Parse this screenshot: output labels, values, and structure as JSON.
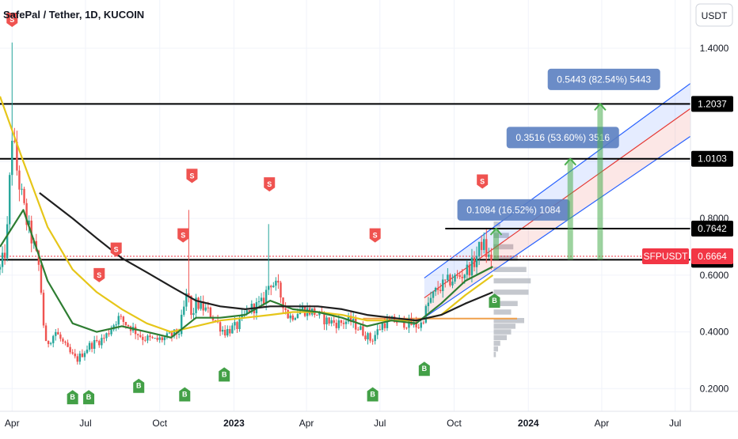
{
  "header": {
    "title": "SafePal / Tether, 1D, KUCOIN",
    "currency_button": "USDT"
  },
  "colors": {
    "candle_up": "#26a69a",
    "candle_down": "#ef5350",
    "ma_yellow": "#e6c619",
    "ma_green": "#2e7d32",
    "ma_black": "#1f1f1f",
    "level_line": "#000000",
    "channel_blue": "#2962ff",
    "channel_red": "#e53935",
    "measure_box": "#5b7fc1",
    "arrow_green": "#4caf50",
    "orange_line": "#f0a04b",
    "sell_signal": "#ef5350",
    "buy_signal": "#43a047",
    "price_tag": "#f23645",
    "volume_profile": "#b2b5be"
  },
  "chart_data": {
    "type": "candlestick",
    "title": "SafePal / Tether, 1D, KUCOIN",
    "symbol": "SFPUSDT",
    "current_price": "0.6664",
    "y_range": [
      0.12,
      1.57
    ],
    "y_ticks": [
      "0.2000",
      "0.4000",
      "0.6000",
      "0.8000",
      "1.0000",
      "1.2000",
      "1.4000"
    ],
    "x_range": [
      "2022-03-17",
      "2024-07-20"
    ],
    "x_ticks": [
      {
        "label": "Apr",
        "date": "2022-04-01",
        "bold": false
      },
      {
        "label": "Jul",
        "date": "2022-07-01",
        "bold": false
      },
      {
        "label": "Oct",
        "date": "2022-10-01",
        "bold": false
      },
      {
        "label": "2023",
        "date": "2023-01-01",
        "bold": true
      },
      {
        "label": "Apr",
        "date": "2023-04-01",
        "bold": false
      },
      {
        "label": "Jul",
        "date": "2023-07-01",
        "bold": false
      },
      {
        "label": "Oct",
        "date": "2023-10-01",
        "bold": false
      },
      {
        "label": "2024",
        "date": "2024-01-01",
        "bold": true
      },
      {
        "label": "Apr",
        "date": "2024-04-01",
        "bold": false
      },
      {
        "label": "Jul",
        "date": "2024-07-01",
        "bold": false
      }
    ],
    "price_path": [
      [
        "2022-03-17",
        0.62
      ],
      [
        "2022-03-25",
        0.7
      ],
      [
        "2022-04-01",
        1.1
      ],
      [
        "2022-04-08",
        0.95
      ],
      [
        "2022-04-18",
        0.8
      ],
      [
        "2022-04-28",
        0.7
      ],
      [
        "2022-05-05",
        0.62
      ],
      [
        "2022-05-12",
        0.35
      ],
      [
        "2022-05-25",
        0.4
      ],
      [
        "2022-06-10",
        0.33
      ],
      [
        "2022-06-20",
        0.3
      ],
      [
        "2022-07-05",
        0.35
      ],
      [
        "2022-07-25",
        0.38
      ],
      [
        "2022-08-10",
        0.45
      ],
      [
        "2022-08-25",
        0.42
      ],
      [
        "2022-09-10",
        0.38
      ],
      [
        "2022-09-25",
        0.37
      ],
      [
        "2022-10-10",
        0.38
      ],
      [
        "2022-10-25",
        0.4
      ],
      [
        "2022-11-05",
        0.55
      ],
      [
        "2022-11-09",
        0.45
      ],
      [
        "2022-11-15",
        0.5
      ],
      [
        "2022-12-01",
        0.47
      ],
      [
        "2022-12-20",
        0.4
      ],
      [
        "2023-01-05",
        0.42
      ],
      [
        "2023-01-20",
        0.48
      ],
      [
        "2023-02-05",
        0.5
      ],
      [
        "2023-02-15",
        0.58
      ],
      [
        "2023-02-25",
        0.55
      ],
      [
        "2023-03-10",
        0.45
      ],
      [
        "2023-03-25",
        0.48
      ],
      [
        "2023-04-10",
        0.47
      ],
      [
        "2023-04-25",
        0.44
      ],
      [
        "2023-05-10",
        0.43
      ],
      [
        "2023-05-25",
        0.44
      ],
      [
        "2023-06-10",
        0.4
      ],
      [
        "2023-06-20",
        0.37
      ],
      [
        "2023-07-05",
        0.43
      ],
      [
        "2023-07-20",
        0.44
      ],
      [
        "2023-08-05",
        0.43
      ],
      [
        "2023-08-20",
        0.42
      ],
      [
        "2023-08-30",
        0.5
      ],
      [
        "2023-09-10",
        0.55
      ],
      [
        "2023-09-25",
        0.58
      ],
      [
        "2023-10-10",
        0.6
      ],
      [
        "2023-10-25",
        0.64
      ],
      [
        "2023-11-05",
        0.72
      ],
      [
        "2023-11-12",
        0.66
      ],
      [
        "2023-11-18",
        0.66
      ]
    ],
    "spikes": [
      {
        "date": "2022-04-01",
        "high": 1.42
      },
      {
        "date": "2022-11-08",
        "high": 0.83
      },
      {
        "date": "2023-02-14",
        "high": 0.78
      }
    ],
    "moving_averages": [
      {
        "color_key": "ma_yellow",
        "points": [
          [
            "2022-03-17",
            1.23
          ],
          [
            "2022-04-15",
            1.0
          ],
          [
            "2022-05-15",
            0.77
          ],
          [
            "2022-06-15",
            0.62
          ],
          [
            "2022-07-15",
            0.54
          ],
          [
            "2022-08-15",
            0.48
          ],
          [
            "2022-09-15",
            0.43
          ],
          [
            "2022-10-15",
            0.4
          ],
          [
            "2022-11-15",
            0.42
          ],
          [
            "2022-12-15",
            0.44
          ],
          [
            "2023-01-15",
            0.45
          ],
          [
            "2023-02-15",
            0.46
          ],
          [
            "2023-03-15",
            0.47
          ],
          [
            "2023-04-15",
            0.47
          ],
          [
            "2023-05-15",
            0.46
          ],
          [
            "2023-06-15",
            0.44
          ],
          [
            "2023-07-15",
            0.44
          ],
          [
            "2023-08-15",
            0.44
          ],
          [
            "2023-09-15",
            0.46
          ],
          [
            "2023-10-15",
            0.53
          ],
          [
            "2023-11-18",
            0.6
          ]
        ]
      },
      {
        "color_key": "ma_green",
        "points": [
          [
            "2022-03-17",
            0.7
          ],
          [
            "2022-04-15",
            0.83
          ],
          [
            "2022-05-15",
            0.58
          ],
          [
            "2022-06-15",
            0.43
          ],
          [
            "2022-07-15",
            0.4
          ],
          [
            "2022-08-15",
            0.42
          ],
          [
            "2022-09-15",
            0.4
          ],
          [
            "2022-10-15",
            0.38
          ],
          [
            "2022-11-15",
            0.45
          ],
          [
            "2022-12-15",
            0.45
          ],
          [
            "2023-01-15",
            0.46
          ],
          [
            "2023-02-15",
            0.51
          ],
          [
            "2023-03-15",
            0.48
          ],
          [
            "2023-04-15",
            0.47
          ],
          [
            "2023-05-15",
            0.45
          ],
          [
            "2023-06-15",
            0.42
          ],
          [
            "2023-07-15",
            0.44
          ],
          [
            "2023-08-15",
            0.43
          ],
          [
            "2023-09-15",
            0.5
          ],
          [
            "2023-10-15",
            0.58
          ],
          [
            "2023-11-18",
            0.63
          ]
        ]
      },
      {
        "color_key": "ma_black",
        "points": [
          [
            "2022-05-05",
            0.89
          ],
          [
            "2022-06-15",
            0.8
          ],
          [
            "2022-07-15",
            0.73
          ],
          [
            "2022-08-15",
            0.66
          ],
          [
            "2022-09-15",
            0.61
          ],
          [
            "2022-10-15",
            0.56
          ],
          [
            "2022-11-15",
            0.51
          ],
          [
            "2022-12-15",
            0.49
          ],
          [
            "2023-01-15",
            0.48
          ],
          [
            "2023-02-15",
            0.49
          ],
          [
            "2023-03-15",
            0.49
          ],
          [
            "2023-04-15",
            0.49
          ],
          [
            "2023-05-15",
            0.48
          ],
          [
            "2023-06-15",
            0.46
          ],
          [
            "2023-07-15",
            0.45
          ],
          [
            "2023-08-15",
            0.44
          ],
          [
            "2023-09-15",
            0.46
          ],
          [
            "2023-10-15",
            0.5
          ],
          [
            "2023-11-18",
            0.54
          ]
        ]
      }
    ],
    "horizontal_levels": [
      {
        "value": 1.2037,
        "label": "1.2037",
        "from": "2022-03-17"
      },
      {
        "value": 1.0103,
        "label": "1.0103",
        "from": "2022-03-17"
      },
      {
        "value": 0.7642,
        "label": "0.7642",
        "from": "2023-09-20"
      },
      {
        "value": 0.6542,
        "label": "0.6542",
        "from": "2022-03-17"
      }
    ],
    "dotted_price_line": 0.6664,
    "orange_line": {
      "value": 0.447,
      "from": "2023-06-10",
      "to": "2023-12-18"
    },
    "channel": {
      "start": "2023-08-25",
      "end": "2024-08-15",
      "top": [
        0.59,
        1.33
      ],
      "mid": [
        0.52,
        1.24
      ],
      "bottom": [
        0.45,
        1.14
      ]
    },
    "measurements": [
      {
        "text": "0.1084 (16.52%) 1084",
        "date": "2023-11-22",
        "box_date": "2023-10-05",
        "box_value": 0.83
      },
      {
        "text": "0.3516 (53.60%) 3516",
        "date": "2024-02-22",
        "box_date": "2023-12-05",
        "box_value": 1.085
      },
      {
        "text": "0.5443 (82.54%) 5443",
        "date": "2024-03-30",
        "box_date": "2024-01-25",
        "box_value": 1.29
      }
    ],
    "signals": [
      {
        "type": "sell",
        "label": "S",
        "date": "2022-04-01",
        "value": 1.5
      },
      {
        "type": "sell",
        "label": "S",
        "date": "2022-07-18",
        "value": 0.6
      },
      {
        "type": "sell",
        "label": "S",
        "date": "2022-08-08",
        "value": 0.69
      },
      {
        "type": "sell",
        "label": "S",
        "date": "2022-10-30",
        "value": 0.74
      },
      {
        "type": "sell",
        "label": "S",
        "date": "2022-11-10",
        "value": 0.95
      },
      {
        "type": "sell",
        "label": "S",
        "date": "2023-02-14",
        "value": 0.92
      },
      {
        "type": "sell",
        "label": "S",
        "date": "2023-06-25",
        "value": 0.74
      },
      {
        "type": "sell",
        "label": "S",
        "date": "2023-11-05",
        "value": 0.93
      },
      {
        "type": "buy",
        "label": "B",
        "date": "2022-06-15",
        "value": 0.17
      },
      {
        "type": "buy",
        "label": "B",
        "date": "2022-07-05",
        "value": 0.17
      },
      {
        "type": "buy",
        "label": "B",
        "date": "2022-09-05",
        "value": 0.21
      },
      {
        "type": "buy",
        "label": "B",
        "date": "2022-11-01",
        "value": 0.18
      },
      {
        "type": "buy",
        "label": "B",
        "date": "2022-12-20",
        "value": 0.25
      },
      {
        "type": "buy",
        "label": "B",
        "date": "2023-06-22",
        "value": 0.18
      },
      {
        "type": "buy",
        "label": "B",
        "date": "2023-08-25",
        "value": 0.27
      },
      {
        "type": "buy",
        "label": "B",
        "date": "2023-11-20",
        "value": 0.51
      }
    ],
    "volume_profile": {
      "anchor": "2023-11-22",
      "rows": [
        [
          0.78,
          0.15
        ],
        [
          0.74,
          0.35
        ],
        [
          0.7,
          0.45
        ],
        [
          0.66,
          0.55
        ],
        [
          0.62,
          0.75
        ],
        [
          0.58,
          0.85
        ],
        [
          0.54,
          0.8
        ],
        [
          0.5,
          0.55
        ],
        [
          0.47,
          0.4
        ],
        [
          0.44,
          0.7
        ],
        [
          0.42,
          0.5
        ],
        [
          0.4,
          0.4
        ],
        [
          0.38,
          0.3
        ],
        [
          0.36,
          0.15
        ],
        [
          0.34,
          0.1
        ],
        [
          0.32,
          0.05
        ]
      ]
    },
    "price_tags": [
      {
        "label": "SFPUSDT",
        "value": 0.6664
      },
      {
        "label": "0.6664",
        "value": 0.6664
      }
    ]
  }
}
